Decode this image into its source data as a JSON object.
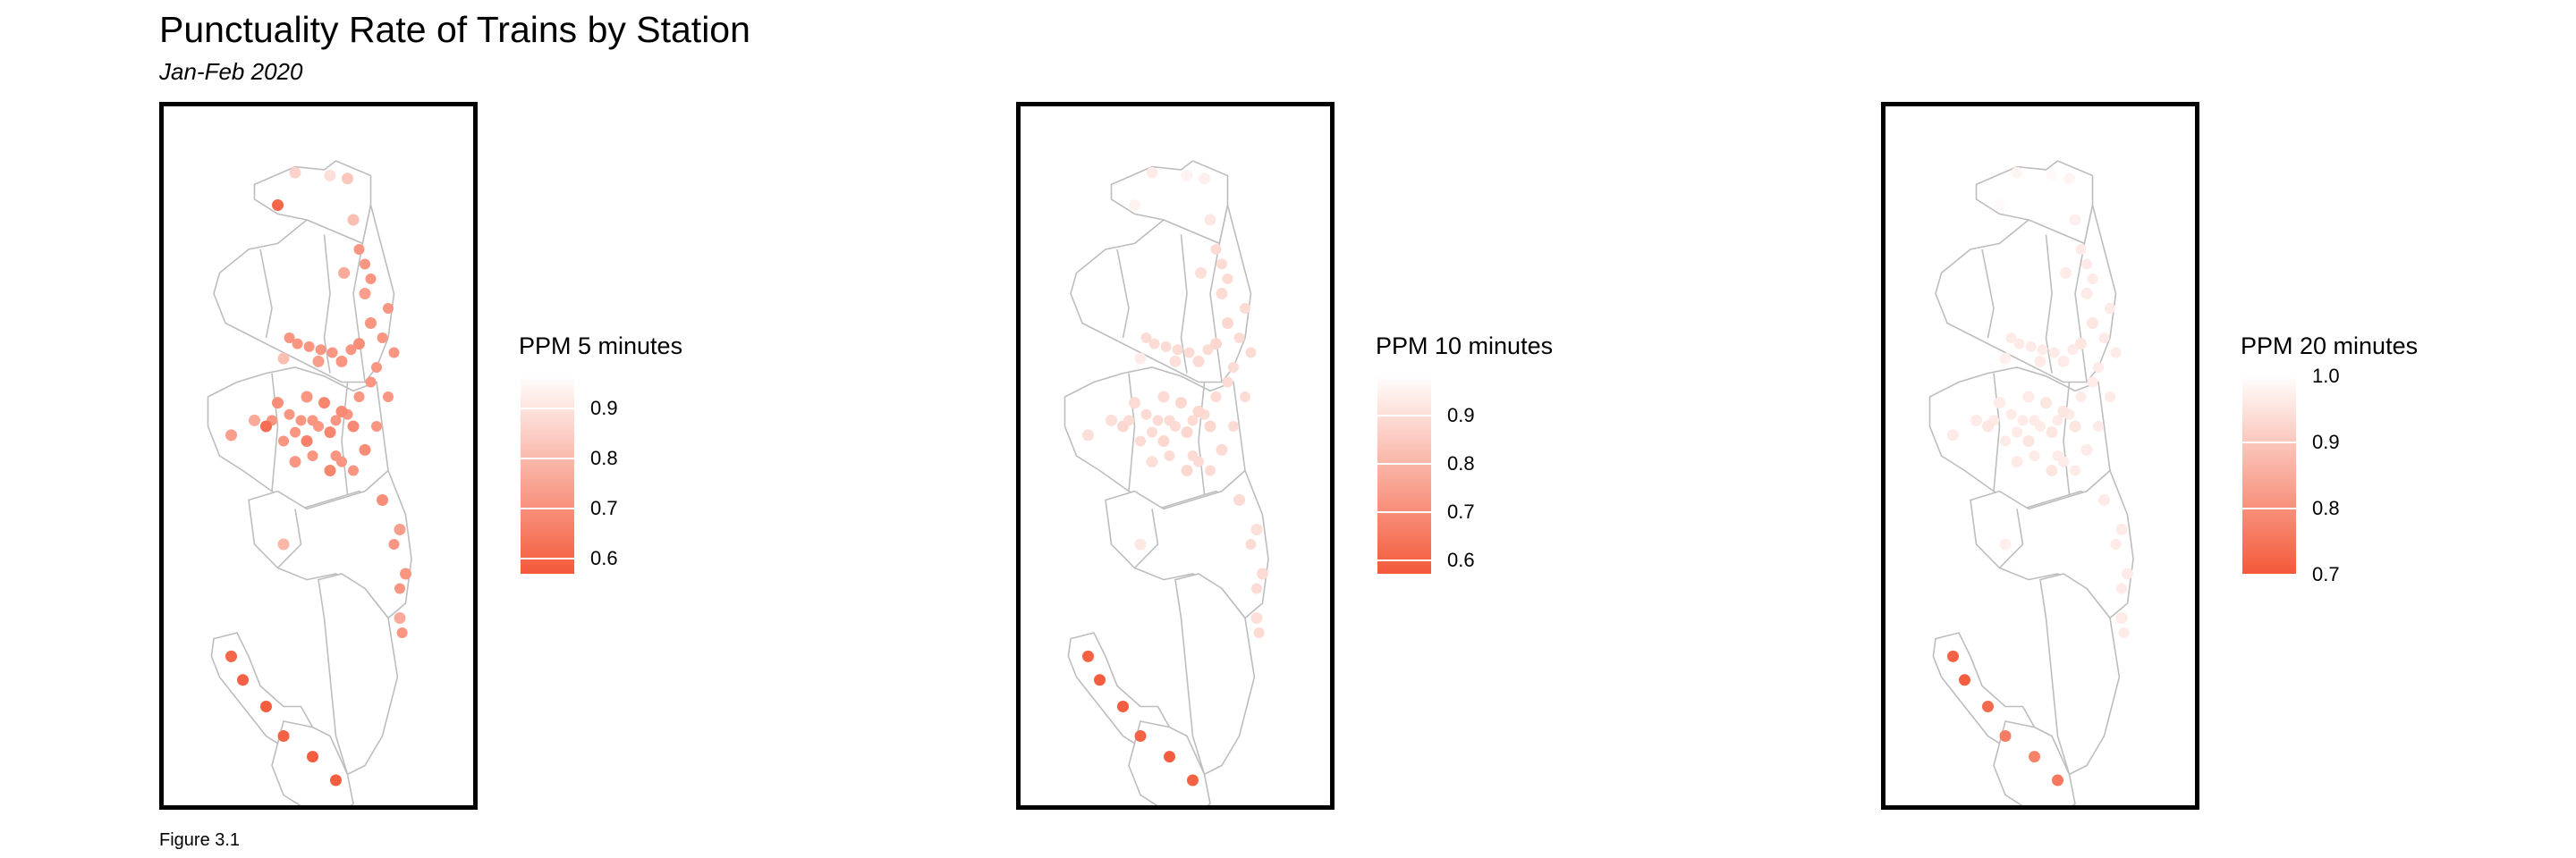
{
  "header": {
    "title": "Punctuality Rate of Trains by Station",
    "subtitle": "Jan-Feb 2020"
  },
  "caption": "Figure 3.1",
  "colors": {
    "low": "#f4593a",
    "high": "#ffffff",
    "boundary": "#bdbdbd",
    "frame": "#000000"
  },
  "maps": [
    {
      "legend_title": "PPM 5 minutes",
      "scale_min": 0.55,
      "scale_max": 0.96,
      "ticks": [
        "0.9",
        "0.8",
        "0.7",
        "0.6"
      ]
    },
    {
      "legend_title": "PPM 10 minutes",
      "scale_min": 0.56,
      "scale_max": 0.98,
      "ticks": [
        "0.9",
        "0.8",
        "0.7",
        "0.6"
      ]
    },
    {
      "legend_title": "PPM 20 minutes",
      "scale_min": 0.68,
      "scale_max": 1.0,
      "ticks": [
        "1.0",
        "0.9",
        "0.8",
        "0.7"
      ]
    }
  ],
  "chart_data": [
    {
      "type": "scatter",
      "title": "Punctuality Rate of Trains by Station",
      "subtitle": "Jan-Feb 2020",
      "legend": "PPM 5 minutes",
      "legend_ticks": [
        0.6,
        0.7,
        0.8,
        0.9
      ],
      "points": [
        {
          "x": -0.2,
          "y": 0.96,
          "v": 0.85
        },
        {
          "x": 0.1,
          "y": 0.95,
          "v": 0.88
        },
        {
          "x": 0.25,
          "y": 0.94,
          "v": 0.82
        },
        {
          "x": -0.35,
          "y": 0.85,
          "v": 0.58
        },
        {
          "x": 0.3,
          "y": 0.8,
          "v": 0.8
        },
        {
          "x": 0.22,
          "y": 0.62,
          "v": 0.75
        },
        {
          "x": 0.4,
          "y": 0.55,
          "v": 0.72
        },
        {
          "x": 0.45,
          "y": 0.45,
          "v": 0.7
        },
        {
          "x": 0.35,
          "y": 0.38,
          "v": 0.68
        },
        {
          "x": 0.2,
          "y": 0.32,
          "v": 0.7
        },
        {
          "x": 0.0,
          "y": 0.32,
          "v": 0.72
        },
        {
          "x": -0.3,
          "y": 0.33,
          "v": 0.8
        },
        {
          "x": 0.05,
          "y": 0.18,
          "v": 0.66
        },
        {
          "x": 0.2,
          "y": 0.15,
          "v": 0.67
        },
        {
          "x": -0.1,
          "y": 0.2,
          "v": 0.7
        },
        {
          "x": -0.35,
          "y": 0.18,
          "v": 0.68
        },
        {
          "x": -0.55,
          "y": 0.12,
          "v": 0.75
        },
        {
          "x": -0.75,
          "y": 0.07,
          "v": 0.72
        },
        {
          "x": -0.45,
          "y": 0.1,
          "v": 0.6
        },
        {
          "x": -0.1,
          "y": 0.05,
          "v": 0.65
        },
        {
          "x": 0.1,
          "y": 0.08,
          "v": 0.66
        },
        {
          "x": 0.3,
          "y": 0.1,
          "v": 0.67
        },
        {
          "x": 0.4,
          "y": 0.02,
          "v": 0.68
        },
        {
          "x": 0.1,
          "y": -0.05,
          "v": 0.66
        },
        {
          "x": -0.2,
          "y": -0.02,
          "v": 0.7
        },
        {
          "x": 0.55,
          "y": -0.15,
          "v": 0.68
        },
        {
          "x": 0.7,
          "y": -0.25,
          "v": 0.72
        },
        {
          "x": 0.75,
          "y": -0.4,
          "v": 0.7
        },
        {
          "x": 0.7,
          "y": -0.55,
          "v": 0.75
        },
        {
          "x": -0.3,
          "y": -0.3,
          "v": 0.78
        },
        {
          "x": -0.75,
          "y": -0.68,
          "v": 0.58
        },
        {
          "x": -0.65,
          "y": -0.76,
          "v": 0.57
        },
        {
          "x": -0.45,
          "y": -0.85,
          "v": 0.56
        },
        {
          "x": -0.3,
          "y": -0.95,
          "v": 0.57
        },
        {
          "x": -0.05,
          "y": -1.02,
          "v": 0.56
        },
        {
          "x": 0.15,
          "y": -1.1,
          "v": 0.56
        }
      ]
    },
    {
      "type": "scatter",
      "legend": "PPM 10 minutes",
      "legend_ticks": [
        0.6,
        0.7,
        0.8,
        0.9
      ],
      "points": [
        {
          "x": -0.2,
          "y": 0.96,
          "v": 0.93
        },
        {
          "x": 0.1,
          "y": 0.95,
          "v": 0.95
        },
        {
          "x": 0.25,
          "y": 0.94,
          "v": 0.94
        },
        {
          "x": -0.35,
          "y": 0.85,
          "v": 0.95
        },
        {
          "x": 0.3,
          "y": 0.8,
          "v": 0.92
        },
        {
          "x": 0.22,
          "y": 0.62,
          "v": 0.9
        },
        {
          "x": 0.4,
          "y": 0.55,
          "v": 0.89
        },
        {
          "x": 0.45,
          "y": 0.45,
          "v": 0.88
        },
        {
          "x": 0.35,
          "y": 0.38,
          "v": 0.88
        },
        {
          "x": 0.2,
          "y": 0.32,
          "v": 0.89
        },
        {
          "x": 0.0,
          "y": 0.32,
          "v": 0.9
        },
        {
          "x": -0.3,
          "y": 0.33,
          "v": 0.93
        },
        {
          "x": 0.05,
          "y": 0.18,
          "v": 0.88
        },
        {
          "x": 0.2,
          "y": 0.15,
          "v": 0.88
        },
        {
          "x": -0.1,
          "y": 0.2,
          "v": 0.89
        },
        {
          "x": -0.35,
          "y": 0.18,
          "v": 0.89
        },
        {
          "x": -0.55,
          "y": 0.12,
          "v": 0.9
        },
        {
          "x": -0.75,
          "y": 0.07,
          "v": 0.9
        },
        {
          "x": -0.45,
          "y": 0.1,
          "v": 0.88
        },
        {
          "x": -0.1,
          "y": 0.05,
          "v": 0.88
        },
        {
          "x": 0.1,
          "y": 0.08,
          "v": 0.88
        },
        {
          "x": 0.3,
          "y": 0.1,
          "v": 0.88
        },
        {
          "x": 0.4,
          "y": 0.02,
          "v": 0.89
        },
        {
          "x": 0.1,
          "y": -0.05,
          "v": 0.88
        },
        {
          "x": -0.2,
          "y": -0.02,
          "v": 0.9
        },
        {
          "x": 0.55,
          "y": -0.15,
          "v": 0.89
        },
        {
          "x": 0.7,
          "y": -0.25,
          "v": 0.9
        },
        {
          "x": 0.75,
          "y": -0.4,
          "v": 0.89
        },
        {
          "x": 0.7,
          "y": -0.55,
          "v": 0.9
        },
        {
          "x": -0.3,
          "y": -0.3,
          "v": 0.92
        },
        {
          "x": -0.75,
          "y": -0.68,
          "v": 0.58
        },
        {
          "x": -0.65,
          "y": -0.76,
          "v": 0.57
        },
        {
          "x": -0.45,
          "y": -0.85,
          "v": 0.57
        },
        {
          "x": -0.3,
          "y": -0.95,
          "v": 0.58
        },
        {
          "x": -0.05,
          "y": -1.02,
          "v": 0.57
        },
        {
          "x": 0.15,
          "y": -1.1,
          "v": 0.58
        }
      ]
    },
    {
      "type": "scatter",
      "legend": "PPM 20 minutes",
      "legend_ticks": [
        0.7,
        0.8,
        0.9,
        1.0
      ],
      "points": [
        {
          "x": -0.2,
          "y": 0.96,
          "v": 0.98
        },
        {
          "x": 0.1,
          "y": 0.95,
          "v": 0.99
        },
        {
          "x": 0.25,
          "y": 0.94,
          "v": 0.98
        },
        {
          "x": -0.35,
          "y": 0.85,
          "v": 0.99
        },
        {
          "x": 0.3,
          "y": 0.8,
          "v": 0.97
        },
        {
          "x": 0.22,
          "y": 0.62,
          "v": 0.96
        },
        {
          "x": 0.4,
          "y": 0.55,
          "v": 0.96
        },
        {
          "x": 0.45,
          "y": 0.45,
          "v": 0.95
        },
        {
          "x": 0.35,
          "y": 0.38,
          "v": 0.95
        },
        {
          "x": 0.2,
          "y": 0.32,
          "v": 0.96
        },
        {
          "x": 0.0,
          "y": 0.32,
          "v": 0.96
        },
        {
          "x": -0.3,
          "y": 0.33,
          "v": 0.97
        },
        {
          "x": 0.05,
          "y": 0.18,
          "v": 0.95
        },
        {
          "x": 0.2,
          "y": 0.15,
          "v": 0.95
        },
        {
          "x": -0.1,
          "y": 0.2,
          "v": 0.96
        },
        {
          "x": -0.35,
          "y": 0.18,
          "v": 0.96
        },
        {
          "x": -0.55,
          "y": 0.12,
          "v": 0.96
        },
        {
          "x": -0.75,
          "y": 0.07,
          "v": 0.96
        },
        {
          "x": -0.45,
          "y": 0.1,
          "v": 0.95
        },
        {
          "x": -0.1,
          "y": 0.05,
          "v": 0.95
        },
        {
          "x": 0.1,
          "y": 0.08,
          "v": 0.95
        },
        {
          "x": 0.3,
          "y": 0.1,
          "v": 0.95
        },
        {
          "x": 0.4,
          "y": 0.02,
          "v": 0.96
        },
        {
          "x": 0.1,
          "y": -0.05,
          "v": 0.95
        },
        {
          "x": -0.2,
          "y": -0.02,
          "v": 0.96
        },
        {
          "x": 0.55,
          "y": -0.15,
          "v": 0.96
        },
        {
          "x": 0.7,
          "y": -0.25,
          "v": 0.96
        },
        {
          "x": 0.75,
          "y": -0.4,
          "v": 0.96
        },
        {
          "x": 0.7,
          "y": -0.55,
          "v": 0.96
        },
        {
          "x": -0.3,
          "y": -0.3,
          "v": 0.97
        },
        {
          "x": -0.75,
          "y": -0.68,
          "v": 0.7
        },
        {
          "x": -0.65,
          "y": -0.76,
          "v": 0.69
        },
        {
          "x": -0.45,
          "y": -0.85,
          "v": 0.71
        },
        {
          "x": -0.3,
          "y": -0.95,
          "v": 0.75
        },
        {
          "x": -0.05,
          "y": -1.02,
          "v": 0.76
        },
        {
          "x": 0.15,
          "y": -1.1,
          "v": 0.74
        }
      ]
    }
  ]
}
